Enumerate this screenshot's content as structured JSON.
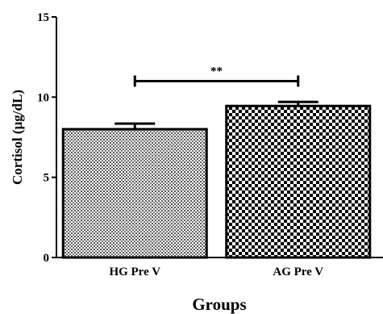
{
  "chart_data": {
    "type": "bar",
    "categories": [
      "HG Pre V",
      "AG Pre V"
    ],
    "values": [
      8.0,
      9.45
    ],
    "errors": [
      0.35,
      0.25
    ],
    "xlabel": "Groups",
    "ylabel": "Cortisol  (µg/dL)",
    "ylim": [
      0,
      15
    ],
    "yticks": [
      0,
      5,
      10,
      15
    ],
    "grid": false,
    "patterns": [
      "fine-dots",
      "checkerboard"
    ],
    "significance": {
      "between": [
        0,
        1
      ],
      "label": "**"
    }
  }
}
